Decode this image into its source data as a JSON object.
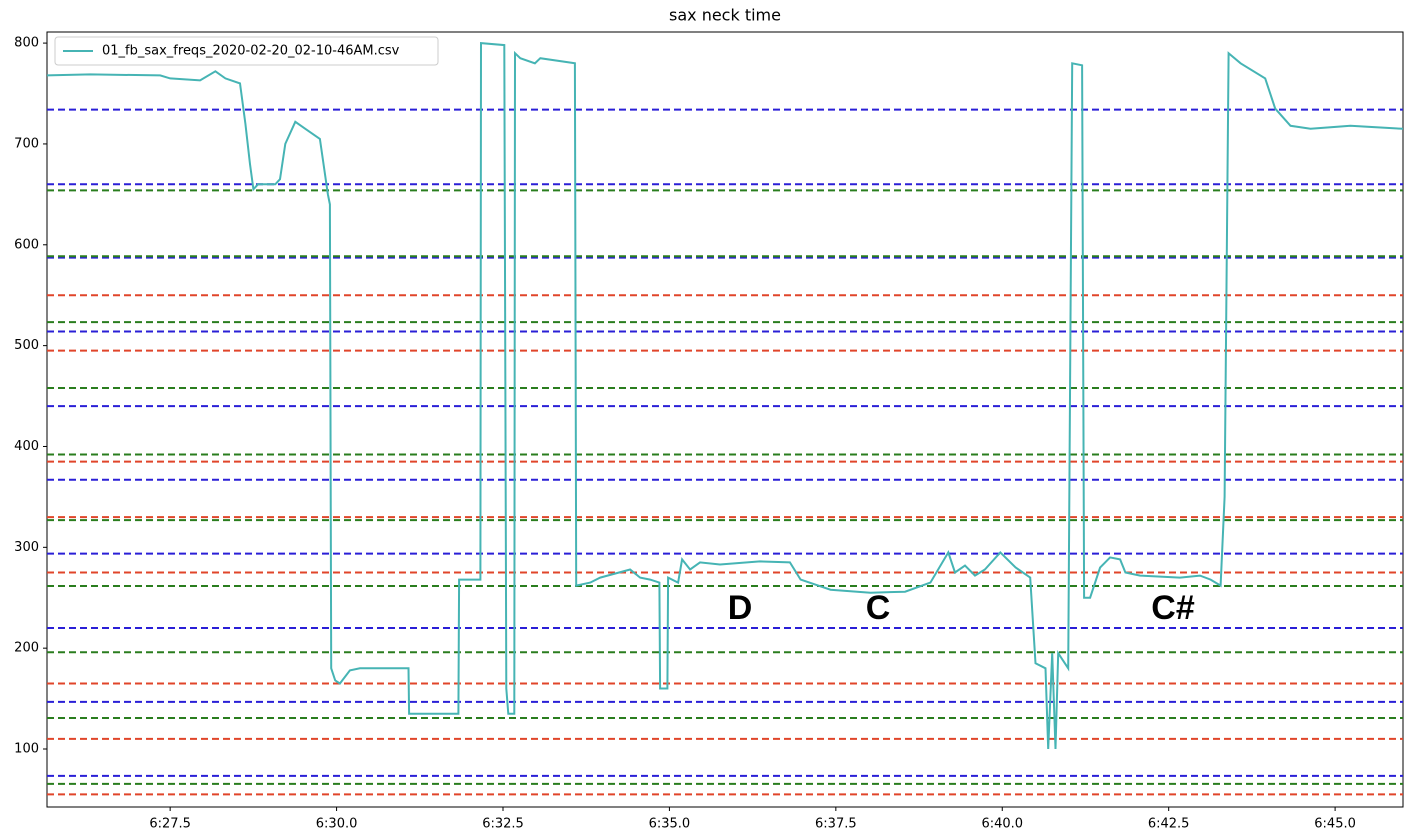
{
  "chart_data": {
    "type": "line",
    "title": "sax neck time",
    "x": [
      25.65,
      26.3,
      27.35,
      27.5,
      27.95,
      28.18,
      28.33,
      28.55,
      28.63,
      28.7,
      28.75,
      28.82,
      29.08,
      29.15,
      29.23,
      29.38,
      29.53,
      29.75,
      29.87,
      29.9,
      29.92,
      29.98,
      30.05,
      30.2,
      30.35,
      31.08,
      31.09,
      31.83,
      31.84,
      32.16,
      32.17,
      32.52,
      32.55,
      32.58,
      32.67,
      32.68,
      32.76,
      32.98,
      33.06,
      33.58,
      33.6,
      33.81,
      33.96,
      34.41,
      34.56,
      34.71,
      34.85,
      34.86,
      34.97,
      34.98,
      35.13,
      35.19,
      35.31,
      35.46,
      35.76,
      36.36,
      36.81,
      36.97,
      37.42,
      38.02,
      38.54,
      38.92,
      39.19,
      39.29,
      39.44,
      39.59,
      39.74,
      39.97,
      40.2,
      40.42,
      40.5,
      40.65,
      40.69,
      40.75,
      40.8,
      40.84,
      40.99,
      41.05,
      41.2,
      41.23,
      41.32,
      41.47,
      41.62,
      41.77,
      41.85,
      42.07,
      42.67,
      42.97,
      43.13,
      43.28,
      43.34,
      43.4,
      43.58,
      43.95,
      44.1,
      44.33,
      44.63,
      45.23,
      46.02
    ],
    "series": [
      {
        "name": "01_fb_sax_freqs_2020-02-20_02-10-46AM.csv",
        "color": "#46b4b4",
        "values": [
          768,
          769,
          768,
          765,
          763,
          772,
          765,
          760,
          720,
          680,
          655,
          660,
          660,
          665,
          700,
          722,
          715,
          705,
          650,
          640,
          180,
          168,
          165,
          178,
          180,
          180,
          135,
          135,
          268,
          268,
          800,
          798,
          160,
          135,
          135,
          790,
          785,
          780,
          785,
          780,
          262,
          265,
          270,
          278,
          270,
          268,
          265,
          160,
          160,
          270,
          265,
          288,
          278,
          285,
          283,
          286,
          285,
          268,
          258,
          255,
          256,
          265,
          295,
          275,
          282,
          272,
          278,
          295,
          280,
          270,
          185,
          180,
          100,
          195,
          100,
          195,
          180,
          780,
          778,
          250,
          250,
          280,
          290,
          288,
          275,
          272,
          270,
          272,
          268,
          262,
          350,
          790,
          780,
          765,
          735,
          718,
          715,
          718,
          715
        ]
      }
    ],
    "reference_lines": [
      {
        "color": "#2a1fd6",
        "values": [
          73.4,
          146.8,
          220,
          293.7,
          367,
          440,
          514,
          587.3,
          660,
          734
        ]
      },
      {
        "color": "#2a7d1e",
        "values": [
          65.4,
          130.8,
          196,
          261.6,
          327,
          392,
          458,
          523.3,
          588.6,
          654
        ]
      },
      {
        "color": "#e0452a",
        "values": [
          55,
          110,
          165,
          275,
          330,
          385,
          495,
          550
        ]
      }
    ],
    "annotations": [
      "D",
      "C",
      "C#"
    ],
    "xlim": [
      25.65,
      46.02
    ],
    "xticks": [
      {
        "value": 27.5,
        "label": "6:27.5"
      },
      {
        "value": 30,
        "label": "6:30.0"
      },
      {
        "value": 32.5,
        "label": "6:32.5"
      },
      {
        "value": 35,
        "label": "6:35.0"
      },
      {
        "value": 37.5,
        "label": "6:37.5"
      },
      {
        "value": 40,
        "label": "6:40.0"
      },
      {
        "value": 42.5,
        "label": "6:42.5"
      },
      {
        "value": 45,
        "label": "6:45.0"
      }
    ],
    "ylim": [
      42.5,
      811
    ],
    "yticks": [
      100,
      200,
      300,
      400,
      500,
      600,
      700,
      800
    ],
    "legend": "upper left"
  }
}
